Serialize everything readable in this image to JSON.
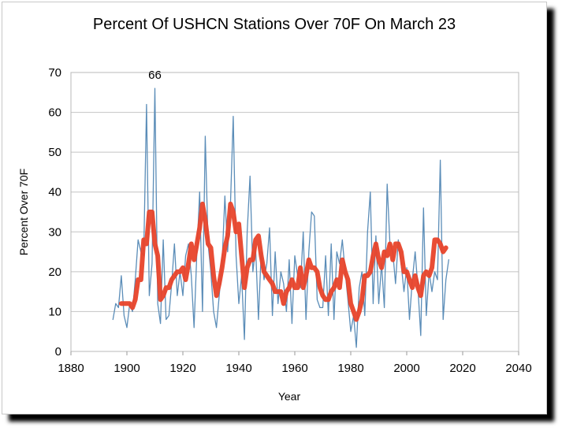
{
  "chart_data": {
    "type": "line",
    "title": "Percent Of USHCN Stations Over 70F On March 23",
    "xlabel": "Year",
    "ylabel": "Percent Over 70F",
    "xlim": [
      1880,
      2040
    ],
    "ylim": [
      0,
      70
    ],
    "xticks": [
      "1880",
      "1900",
      "1920",
      "1940",
      "1960",
      "1980",
      "2000",
      "2020",
      "2040"
    ],
    "yticks": [
      "0",
      "10",
      "20",
      "30",
      "40",
      "50",
      "60",
      "70"
    ],
    "grid": true,
    "annotation": {
      "text": "66",
      "x": 1910,
      "y": 66
    },
    "colors": {
      "annual": "#5b8db8",
      "smoothed": "#e8432a"
    },
    "series": [
      {
        "x": [
          1895,
          1896,
          1897,
          1898,
          1899,
          1900,
          1901,
          1902,
          1903,
          1904,
          1905,
          1906,
          1907,
          1908,
          1909,
          1910,
          1911,
          1912,
          1913,
          1914,
          1915,
          1916,
          1917,
          1918,
          1919,
          1920,
          1921,
          1922,
          1923,
          1924,
          1925,
          1926,
          1927,
          1928,
          1929,
          1930,
          1931,
          1932,
          1933,
          1934,
          1935,
          1936,
          1937,
          1938,
          1939,
          1940,
          1941,
          1942,
          1943,
          1944,
          1945,
          1946,
          1947,
          1948,
          1949,
          1950,
          1951,
          1952,
          1953,
          1954,
          1955,
          1956,
          1957,
          1958,
          1959,
          1960,
          1961,
          1962,
          1963,
          1964,
          1965,
          1966,
          1967,
          1968,
          1969,
          1970,
          1971,
          1972,
          1973,
          1974,
          1975,
          1976,
          1977,
          1978,
          1979,
          1980,
          1981,
          1982,
          1983,
          1984,
          1985,
          1986,
          1987,
          1988,
          1989,
          1990,
          1991,
          1992,
          1993,
          1994,
          1995,
          1996,
          1997,
          1998,
          1999,
          2000,
          2001,
          2002,
          2003,
          2004,
          2005,
          2006,
          2007,
          2008,
          2009,
          2010,
          2011,
          2012,
          2013,
          2014,
          2015
        ],
        "values": [
          8,
          12,
          11,
          19,
          9,
          6,
          12,
          10,
          18,
          28,
          25,
          24,
          62,
          14,
          22,
          66,
          12,
          7,
          28,
          8,
          9,
          17,
          27,
          14,
          20,
          14,
          24,
          27,
          19,
          6,
          25,
          40,
          10,
          54,
          27,
          20,
          10,
          6,
          14,
          22,
          39,
          25,
          37,
          59,
          24,
          12,
          19,
          3,
          30,
          44,
          20,
          26,
          8,
          25,
          18,
          22,
          31,
          9,
          25,
          12,
          20,
          17,
          10,
          23,
          7,
          24,
          19,
          16,
          30,
          8,
          25,
          35,
          34,
          13,
          11,
          11,
          24,
          9,
          27,
          8,
          25,
          22,
          28,
          20,
          13,
          5,
          9,
          1,
          16,
          20,
          9,
          30,
          40,
          12,
          29,
          12,
          22,
          11,
          42,
          27,
          25,
          17,
          28,
          22,
          15,
          21,
          8,
          18,
          25,
          16,
          4,
          36,
          9,
          20,
          15,
          20,
          18,
          48,
          8,
          18,
          23
        ]
      },
      {
        "x": [
          1898,
          1899,
          1900,
          1901,
          1902,
          1903,
          1904,
          1905,
          1906,
          1907,
          1908,
          1909,
          1910,
          1911,
          1912,
          1913,
          1914,
          1915,
          1916,
          1917,
          1918,
          1919,
          1920,
          1921,
          1922,
          1923,
          1924,
          1925,
          1926,
          1927,
          1928,
          1929,
          1930,
          1931,
          1932,
          1933,
          1934,
          1935,
          1936,
          1937,
          1938,
          1939,
          1940,
          1941,
          1942,
          1943,
          1944,
          1945,
          1946,
          1947,
          1948,
          1949,
          1950,
          1951,
          1952,
          1953,
          1954,
          1955,
          1956,
          1957,
          1958,
          1959,
          1960,
          1961,
          1962,
          1963,
          1964,
          1965,
          1966,
          1967,
          1968,
          1969,
          1970,
          1971,
          1972,
          1973,
          1974,
          1975,
          1976,
          1977,
          1978,
          1979,
          1980,
          1981,
          1982,
          1983,
          1984,
          1985,
          1986,
          1987,
          1988,
          1989,
          1990,
          1991,
          1992,
          1993,
          1994,
          1995,
          1996,
          1997,
          1998,
          1999,
          2000,
          2001,
          2002,
          2003,
          2004,
          2005,
          2006,
          2007,
          2008,
          2009,
          2010,
          2011,
          2012,
          2013,
          2014
        ],
        "values": [
          12,
          12,
          12,
          12,
          11,
          13,
          18,
          18,
          28,
          27,
          35,
          35,
          27,
          24,
          13,
          14,
          16,
          16,
          18,
          19,
          20,
          20,
          21,
          18,
          22,
          27,
          23,
          27,
          31,
          37,
          33,
          27,
          26,
          19,
          14,
          17,
          21,
          26,
          29,
          37,
          35,
          30,
          32,
          24,
          16,
          21,
          23,
          23,
          28,
          29,
          24,
          20,
          19,
          18,
          17,
          15,
          15,
          15,
          12,
          15,
          16,
          18,
          16,
          16,
          21,
          16,
          19,
          23,
          21,
          21,
          20,
          16,
          14,
          13,
          13,
          15,
          16,
          18,
          16,
          23,
          20,
          18,
          12,
          10,
          8,
          10,
          13,
          19,
          19,
          20,
          24,
          27,
          23,
          21,
          25,
          24,
          27,
          23,
          27,
          27,
          25,
          20,
          20,
          18,
          16,
          19,
          16,
          14,
          19,
          20,
          19,
          21,
          28,
          28,
          27,
          25,
          26
        ]
      }
    ]
  }
}
